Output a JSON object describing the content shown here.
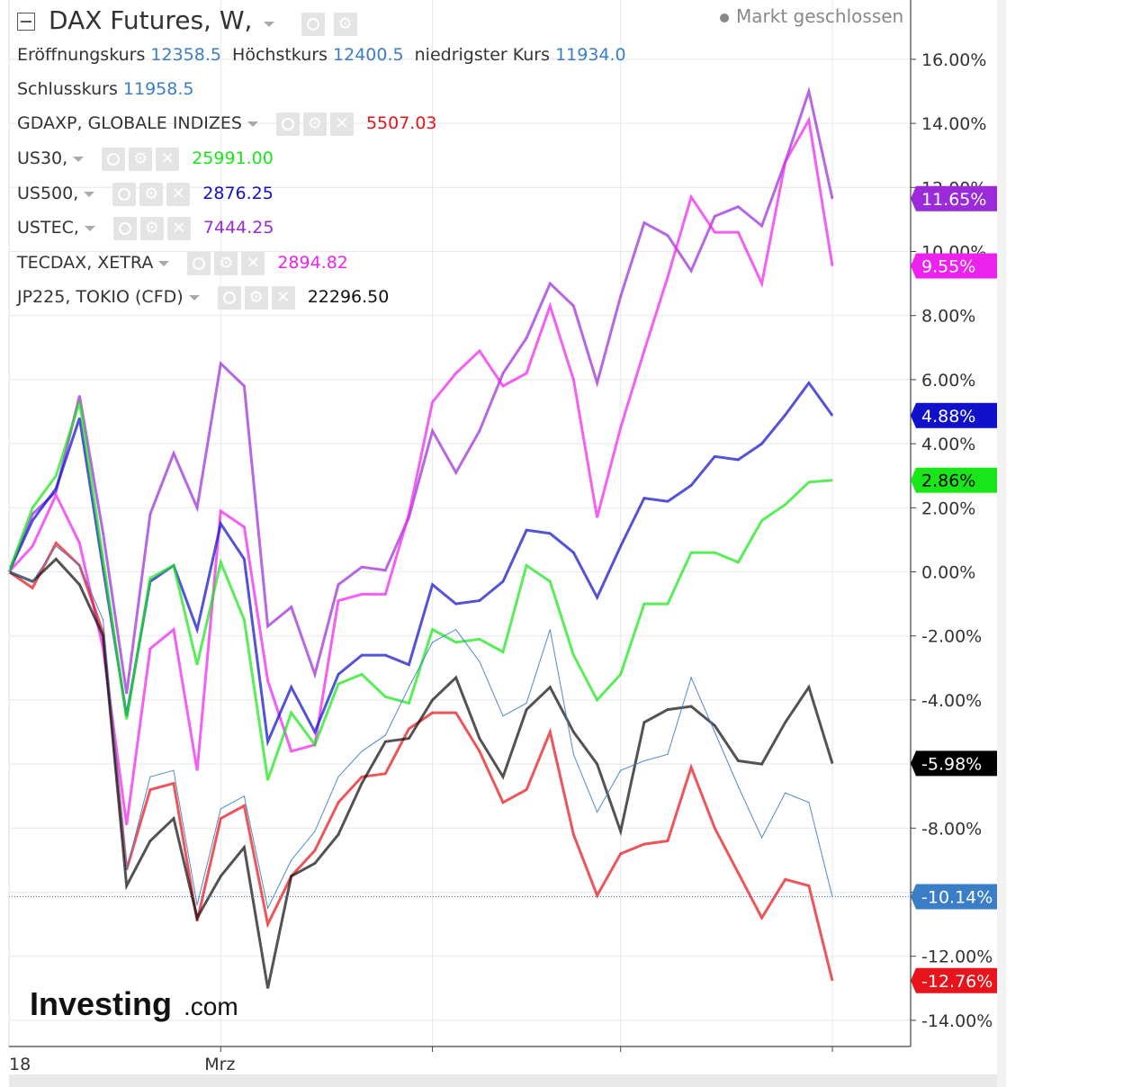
{
  "header": {
    "title": "DAX Futures, W,",
    "status": "Markt geschlossen",
    "ohlc": {
      "open_label": "Eröffnungskurs",
      "open": "12358.5",
      "high_label": "Höchstkurs",
      "high": "12400.5",
      "low_label": "niedrigster Kurs",
      "low": "11934.0",
      "close_label": "Schlusskurs",
      "close": "11958.5"
    }
  },
  "legend": [
    {
      "name": "GDAXP, GLOBALE INDIZES",
      "value": "5507.03",
      "color": "#e8141b"
    },
    {
      "name": "US30,",
      "value": "25991.00",
      "color": "#19e619"
    },
    {
      "name": "US500,",
      "value": "2876.25",
      "color": "#1111cc"
    },
    {
      "name": "USTEC,",
      "value": "7444.25",
      "color": "#9b2bd9"
    },
    {
      "name": "TECDAX, XETRA",
      "value": "2894.82",
      "color": "#ee22ee"
    },
    {
      "name": "JP225, TOKIO (CFD)",
      "value": "22296.50",
      "color": "#111111"
    }
  ],
  "logo": {
    "brand": "Investing",
    "suffix": ".com"
  },
  "chart_data": {
    "type": "line",
    "ylim": [
      -14.8,
      17.5
    ],
    "y_ticks": [
      -14,
      -12,
      -10,
      -8,
      -6,
      -4,
      -2,
      0,
      2,
      4,
      6,
      8,
      10,
      12,
      14,
      16
    ],
    "y_tick_labels": [
      "-14.00%",
      "-12.00%",
      "-10.00%",
      "-8.00%",
      "-6.00%",
      "-4.00%",
      "-2.00%",
      "0.00%",
      "2.00%",
      "4.00%",
      "6.00%",
      "8.00%",
      "10.00%",
      "12.00%",
      "14.00%",
      "16.00%"
    ],
    "x_labels": [
      {
        "i": 0,
        "label": "18"
      },
      {
        "i": 9,
        "label": "Mrz"
      }
    ],
    "x_ticks": [
      9,
      18,
      26,
      35
    ],
    "last_value_labels": [
      {
        "text": "11.65%",
        "value": 11.65,
        "bg": "#9b2bd9",
        "fg": "#ffffff"
      },
      {
        "text": "9.55%",
        "value": 9.55,
        "bg": "#ee22ee",
        "fg": "#ffffff"
      },
      {
        "text": "4.88%",
        "value": 4.88,
        "bg": "#1111cc",
        "fg": "#ffffff"
      },
      {
        "text": "2.86%",
        "value": 2.86,
        "bg": "#19e619",
        "fg": "#000000"
      },
      {
        "text": "-5.98%",
        "value": -5.98,
        "bg": "#000000",
        "fg": "#ffffff"
      },
      {
        "text": "-10.14%",
        "value": -10.14,
        "bg": "#3a7ec8",
        "fg": "#ffffff"
      },
      {
        "text": "-12.76%",
        "value": -12.76,
        "bg": "#e8141b",
        "fg": "#ffffff"
      }
    ],
    "series": [
      {
        "name": "USTEC,",
        "color": "#9b2bd9",
        "width": 3,
        "values": [
          0,
          1.8,
          2.5,
          5.5,
          1.2,
          -3.8,
          1.8,
          3.7,
          2.0,
          6.5,
          5.8,
          -1.7,
          -1.1,
          -3.2,
          -0.4,
          0.15,
          0.05,
          1.7,
          4.4,
          3.1,
          4.4,
          6.2,
          7.3,
          9.0,
          8.3,
          5.9,
          8.6,
          10.9,
          10.5,
          9.4,
          11.1,
          11.4,
          10.8,
          12.8,
          15.0,
          11.65
        ]
      },
      {
        "name": "TECDAX, XETRA",
        "color": "#ee22ee",
        "width": 3,
        "values": [
          0,
          0.8,
          2.4,
          0.9,
          -2.4,
          -7.9,
          -2.4,
          -1.8,
          -6.2,
          1.9,
          1.4,
          -3.4,
          -5.6,
          -5.4,
          -0.9,
          -0.7,
          -0.7,
          1.8,
          5.3,
          6.2,
          6.9,
          5.8,
          6.2,
          8.3,
          6.0,
          1.7,
          4.5,
          6.9,
          9.2,
          11.7,
          10.6,
          10.6,
          9.0,
          12.8,
          14.1,
          9.55
        ]
      },
      {
        "name": "US500,",
        "color": "#1111cc",
        "width": 3,
        "values": [
          0,
          1.6,
          2.6,
          4.8,
          0.1,
          -4.5,
          -0.3,
          0.2,
          -1.8,
          1.5,
          0.4,
          -5.3,
          -3.6,
          -5.0,
          -3.2,
          -2.6,
          -2.6,
          -2.9,
          -0.4,
          -1.0,
          -0.9,
          -0.3,
          1.3,
          1.2,
          0.6,
          -0.8,
          0.8,
          2.3,
          2.2,
          2.7,
          3.6,
          3.5,
          4.0,
          4.9,
          5.9,
          4.88
        ]
      },
      {
        "name": "US30,",
        "color": "#19e619",
        "width": 3,
        "values": [
          0,
          2.0,
          3.0,
          5.3,
          0.4,
          -4.6,
          -0.2,
          0.2,
          -2.9,
          0.3,
          -1.5,
          -6.5,
          -4.4,
          -5.4,
          -3.5,
          -3.2,
          -3.9,
          -4.1,
          -1.8,
          -2.2,
          -2.1,
          -2.5,
          0.2,
          -0.3,
          -2.6,
          -4.0,
          -3.2,
          -1.0,
          -1.0,
          0.6,
          0.6,
          0.3,
          1.6,
          2.1,
          2.8,
          2.86
        ]
      },
      {
        "name": "GDAXP, GLOBALE INDIZES",
        "color": "#e8141b",
        "width": 3,
        "values": [
          0,
          -0.5,
          0.9,
          0.2,
          -1.9,
          -9.3,
          -6.8,
          -6.6,
          -10.9,
          -7.7,
          -7.3,
          -11.0,
          -9.5,
          -8.7,
          -7.2,
          -6.4,
          -6.3,
          -4.9,
          -4.4,
          -4.4,
          -5.6,
          -7.2,
          -6.8,
          -5.0,
          -8.2,
          -10.1,
          -8.8,
          -8.5,
          -8.4,
          -6.1,
          -8.0,
          -9.4,
          -10.8,
          -9.6,
          -9.8,
          -12.76
        ]
      },
      {
        "name": "JP225, TOKIO (CFD)",
        "color": "#111111",
        "width": 3,
        "values": [
          0,
          -0.3,
          0.4,
          -0.4,
          -2.0,
          -9.8,
          -8.4,
          -7.7,
          -10.8,
          -9.5,
          -8.6,
          -13.0,
          -9.5,
          -9.1,
          -8.2,
          -6.6,
          -5.3,
          -5.2,
          -4.0,
          -3.3,
          -5.2,
          -6.4,
          -4.3,
          -3.6,
          -5.0,
          -6.0,
          -8.1,
          -4.7,
          -4.3,
          -4.2,
          -4.8,
          -5.9,
          -6.0,
          -4.7,
          -3.6,
          -5.98
        ]
      },
      {
        "name": "DAX Futures, W,",
        "color": "#3a7ec8",
        "width": 1,
        "values": [
          0,
          -0.3,
          0.8,
          0.2,
          -1.5,
          -9.3,
          -6.4,
          -6.2,
          -10.4,
          -7.4,
          -7.0,
          -10.5,
          -9.0,
          -8.1,
          -6.4,
          -5.6,
          -5.1,
          -3.6,
          -2.2,
          -1.8,
          -2.8,
          -4.5,
          -4.1,
          -1.8,
          -5.7,
          -7.5,
          -6.2,
          -5.9,
          -5.7,
          -3.3,
          -5.0,
          -6.7,
          -8.3,
          -6.9,
          -7.2,
          -10.14
        ]
      }
    ]
  }
}
